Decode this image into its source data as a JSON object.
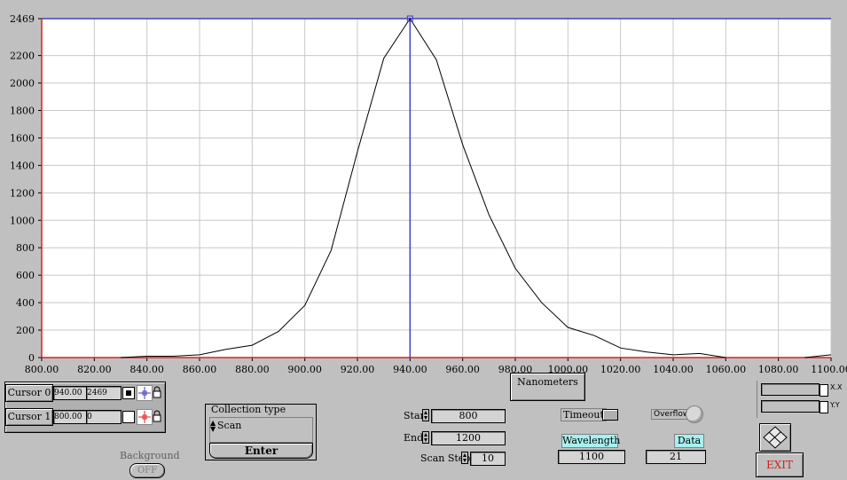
{
  "chart_data": {
    "type": "line",
    "x": [
      800,
      810,
      820,
      830,
      840,
      850,
      860,
      870,
      880,
      890,
      900,
      910,
      920,
      930,
      940,
      950,
      960,
      970,
      980,
      990,
      1000,
      1010,
      1020,
      1030,
      1040,
      1050,
      1060,
      1070,
      1080,
      1090,
      1100
    ],
    "y": [
      0,
      0,
      0,
      0,
      10,
      10,
      20,
      60,
      90,
      190,
      380,
      780,
      1500,
      2180,
      2469,
      2170,
      1550,
      1040,
      650,
      400,
      220,
      160,
      70,
      40,
      20,
      30,
      0,
      0,
      0,
      0,
      20
    ],
    "x_ticks": [
      "800.00",
      "820.00",
      "840.00",
      "860.00",
      "880.00",
      "900.00",
      "920.00",
      "940.00",
      "960.00",
      "980.00",
      "1000.00",
      "1020.00",
      "1040.00",
      "1060.00",
      "1080.00",
      "1100.00"
    ],
    "y_ticks": [
      "0",
      "200",
      "400",
      "600",
      "800",
      "1000",
      "1200",
      "1400",
      "1600",
      "1800",
      "2000",
      "2200",
      "2469"
    ],
    "xlim": [
      800,
      1100
    ],
    "ylim": [
      0,
      2469
    ],
    "xlabel": "Nanometers",
    "grid": true,
    "cursors": [
      {
        "x": 940,
        "y": 2469,
        "color": "#4040c0"
      },
      {
        "x": 800,
        "y": 0,
        "color": "#e02020"
      }
    ]
  },
  "xaxis_label": "Nanometers",
  "cursors": [
    {
      "label": "Cursor 0",
      "x": "940.00",
      "y": "2469"
    },
    {
      "label": "Cursor 1",
      "x": "800.00",
      "y": "0"
    }
  ],
  "collection": {
    "title": "Collection type",
    "value": "Scan",
    "enter_label": "Enter"
  },
  "background": {
    "label": "Background",
    "toggle": "OFF"
  },
  "scan": {
    "start_label": "Start",
    "start_value": "800",
    "end_label": "End",
    "end_value": "1200",
    "step_label": "Scan Step",
    "step_value": "10"
  },
  "timeout_label": "Timeout",
  "overflow_label": "Overflow",
  "wavelength": {
    "label": "Wavelength",
    "value": "1100"
  },
  "data_field": {
    "label": "Data",
    "value": "21"
  },
  "scale": {
    "x_label": "X.X",
    "y_label": "Y.Y"
  },
  "exit_label": "EXIT",
  "colors": {
    "trace": "#000000",
    "grid": "#c8c8c8",
    "cursor0": "#4040c0",
    "cursor1": "#e02020",
    "exit_text": "#d02020"
  }
}
